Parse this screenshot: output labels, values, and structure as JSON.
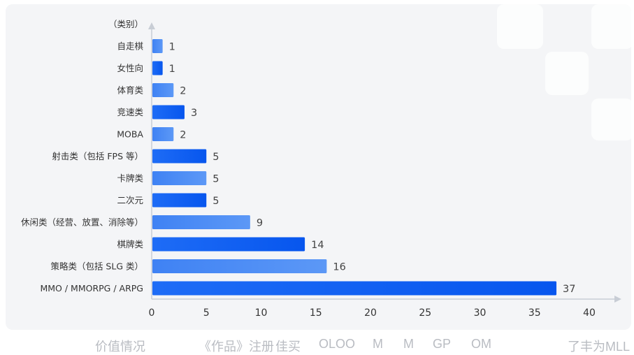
{
  "chart_data": {
    "type": "bar",
    "orientation": "horizontal",
    "ylabel": "（类别）",
    "categories": [
      "自走棋",
      "女性向",
      "体育类",
      "竞速类",
      "MOBA",
      "射击类（包括 FPS 等）",
      "卡牌类",
      "二次元",
      "休闲类（经营、放置、消除等）",
      "棋牌类",
      "策略类（包括 SLG 类）",
      "MMO / MMORPG / ARPG"
    ],
    "values": [
      1,
      1,
      2,
      3,
      2,
      5,
      5,
      5,
      9,
      14,
      16,
      37
    ],
    "xlim": [
      0,
      40
    ],
    "xticks": [
      0,
      5,
      10,
      15,
      20,
      25,
      30,
      35,
      40
    ],
    "grid": false,
    "colors": {
      "bar_dark": "#0b5cf0",
      "bar_light": "#4d8df5",
      "axis": "#c8cdd5",
      "text": "#333333"
    }
  },
  "footer": {
    "items": [
      "价值情况",
      "《作品》注册",
      "佳买",
      "OLOO",
      "M",
      "M",
      "GP",
      "OM",
      "了丰为MLL"
    ]
  }
}
